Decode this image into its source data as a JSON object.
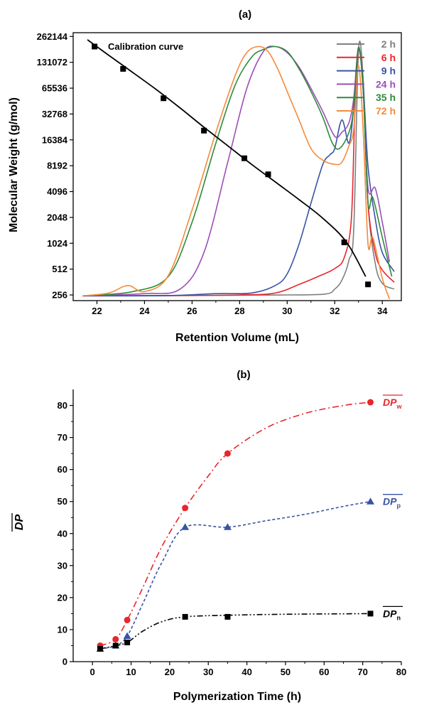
{
  "chart_data": [
    {
      "panel_label": "(a)",
      "type": "line",
      "xlabel": "Retention Volume (mL)",
      "ylabel": "Molecular Weight (g/mol)",
      "xlim": [
        21,
        34.8
      ],
      "ylim": [
        220,
        290000
      ],
      "y_scale": "log2",
      "x_ticks": [
        22,
        24,
        26,
        28,
        30,
        32,
        34
      ],
      "y_ticks": [
        256,
        512,
        1024,
        2048,
        4096,
        8192,
        16384,
        32768,
        65536,
        131072,
        262144
      ],
      "legend_placement": "top-right",
      "grid": false,
      "annotation": "Calibration curve",
      "calibration": {
        "marker": "square",
        "color": "#000000",
        "points": [
          [
            21.9,
            200000
          ],
          [
            23.1,
            110000
          ],
          [
            24.8,
            50000
          ],
          [
            26.5,
            21000
          ],
          [
            28.2,
            10000
          ],
          [
            29.2,
            6500
          ],
          [
            32.4,
            1050
          ],
          [
            33.4,
            340
          ]
        ],
        "fit": [
          [
            21.6,
            240000
          ],
          [
            22.5,
            158000
          ],
          [
            23.5,
            100000
          ],
          [
            24.5,
            63000
          ],
          [
            25.5,
            38500
          ],
          [
            26.5,
            23000
          ],
          [
            27.5,
            14000
          ],
          [
            28.5,
            8500
          ],
          [
            29.5,
            5300
          ],
          [
            30.5,
            3300
          ],
          [
            31.5,
            2000
          ],
          [
            32.5,
            1050
          ],
          [
            33.3,
            420
          ]
        ]
      },
      "series": [
        {
          "name": "2 h",
          "color": "#7f7f7f",
          "x": [
            21.4,
            25,
            28,
            30,
            31.6,
            32.0,
            32.3,
            32.6,
            32.8,
            33.0,
            33.2,
            33.4,
            33.7,
            34.0,
            34.5
          ],
          "y": [
            250,
            252,
            254,
            256,
            262,
            300,
            380,
            650,
            1500,
            180000,
            80000,
            3000,
            600,
            350,
            300
          ]
        },
        {
          "name": "6 h",
          "color": "#e8262c",
          "x": [
            21.4,
            25,
            28,
            29.5,
            30.5,
            31.3,
            32.0,
            32.4,
            32.7,
            32.85,
            33.0,
            33.2,
            33.4,
            33.7,
            34.0,
            34.5
          ],
          "y": [
            250,
            252,
            256,
            270,
            340,
            420,
            520,
            700,
            2000,
            40000,
            190000,
            60000,
            3000,
            800,
            500,
            360
          ]
        },
        {
          "name": "9 h",
          "color": "#3953a4",
          "x": [
            21.4,
            25,
            27,
            28.5,
            29.5,
            30.0,
            30.5,
            31.0,
            31.5,
            31.8,
            32.0,
            32.3,
            32.6,
            32.8,
            33.0,
            33.2,
            33.4,
            33.7,
            34.0,
            34.5
          ],
          "y": [
            250,
            252,
            265,
            270,
            330,
            450,
            1000,
            3000,
            8500,
            11000,
            13000,
            28000,
            15000,
            40000,
            190000,
            70000,
            8000,
            2000,
            800,
            480
          ]
        },
        {
          "name": "24 h",
          "color": "#9b4fb6",
          "x": [
            21.4,
            24,
            25.5,
            26.5,
            27.5,
            28.3,
            29.0,
            29.5,
            30.0,
            30.5,
            31.0,
            31.5,
            32.0,
            32.3,
            32.6,
            32.8,
            33.0,
            33.2,
            33.4,
            33.7,
            34.0,
            34.3
          ],
          "y": [
            250,
            265,
            300,
            800,
            9000,
            65000,
            175000,
            200000,
            170000,
            115000,
            65000,
            35000,
            18000,
            20000,
            26000,
            50000,
            195000,
            60000,
            4500,
            4500,
            1800,
            620
          ]
        },
        {
          "name": "35 h",
          "color": "#2e8a3c",
          "x": [
            21.4,
            23.5,
            25.0,
            26.0,
            27.0,
            27.8,
            28.5,
            29.0,
            29.5,
            30.0,
            30.5,
            31.0,
            31.5,
            31.9,
            32.2,
            32.6,
            32.8,
            33.0,
            33.2,
            33.4,
            33.6,
            34.0,
            34.4
          ],
          "y": [
            250,
            280,
            420,
            1800,
            15000,
            70000,
            150000,
            185000,
            200000,
            175000,
            110000,
            60000,
            30000,
            15000,
            13000,
            20000,
            40000,
            195000,
            60000,
            3000,
            3500,
            1200,
            420
          ]
        },
        {
          "name": "72 h",
          "color": "#f58a3a",
          "x": [
            21.4,
            22.5,
            23.3,
            24.0,
            25.0,
            26.0,
            27.0,
            27.8,
            28.3,
            28.8,
            29.2,
            29.6,
            30.0,
            30.5,
            31.0,
            31.5,
            32.0,
            32.3,
            32.6,
            32.8,
            33.0,
            33.2,
            33.4,
            33.6,
            34.0,
            34.3
          ],
          "y": [
            250,
            270,
            330,
            280,
            430,
            2500,
            20000,
            90000,
            170000,
            200000,
            175000,
            110000,
            60000,
            28000,
            13000,
            9500,
            8500,
            9000,
            14000,
            22000,
            120000,
            20000,
            1000,
            1200,
            400,
            230
          ]
        }
      ]
    },
    {
      "panel_label": "(b)",
      "type": "line",
      "xlabel": "Polymerization Time (h)",
      "ylabel": "DP",
      "xlim": [
        -5,
        80
      ],
      "ylim": [
        0,
        85
      ],
      "x_ticks": [
        0,
        10,
        20,
        30,
        40,
        50,
        60,
        70,
        80
      ],
      "y_ticks": [
        0,
        10,
        20,
        30,
        40,
        50,
        60,
        70,
        80
      ],
      "grid": false,
      "series": [
        {
          "label_main": "DP",
          "label_sub": "w",
          "color": "#e8262c",
          "marker": "circle",
          "line": "dash-dot",
          "x": [
            2,
            6,
            9,
            24,
            35,
            72
          ],
          "y": [
            5,
            7,
            13,
            48,
            65,
            81
          ],
          "curve": [
            [
              2,
              5
            ],
            [
              6,
              7
            ],
            [
              9,
              13
            ],
            [
              13,
              23
            ],
            [
              18,
              36
            ],
            [
              24,
              48
            ],
            [
              30,
              58
            ],
            [
              35,
              65
            ],
            [
              45,
              73
            ],
            [
              55,
              77.5
            ],
            [
              65,
              80
            ],
            [
              72,
              81
            ]
          ]
        },
        {
          "label_main": "DP",
          "label_sub": "p",
          "color": "#3953a4",
          "marker": "triangle",
          "line": "dashed",
          "x": [
            2,
            6,
            9,
            24,
            35,
            72
          ],
          "y": [
            4,
            5,
            8,
            42,
            42,
            50
          ],
          "curve": [
            [
              2,
              4
            ],
            [
              6,
              5
            ],
            [
              9,
              8
            ],
            [
              13,
              18
            ],
            [
              18,
              31
            ],
            [
              24,
              42
            ],
            [
              35,
              42
            ],
            [
              45,
              44
            ],
            [
              55,
              46
            ],
            [
              65,
              48.5
            ],
            [
              72,
              50
            ]
          ]
        },
        {
          "label_main": "DP",
          "label_sub": "n",
          "color": "#000000",
          "marker": "square",
          "line": "dash-dot-dot",
          "x": [
            2,
            6,
            9,
            24,
            35,
            72
          ],
          "y": [
            4,
            5,
            6,
            14,
            14,
            15
          ],
          "curve": [
            [
              2,
              4
            ],
            [
              6,
              5
            ],
            [
              9,
              6
            ],
            [
              13,
              9.5
            ],
            [
              18,
              12.5
            ],
            [
              24,
              14
            ],
            [
              35,
              14.5
            ],
            [
              50,
              14.8
            ],
            [
              72,
              15
            ]
          ]
        }
      ]
    }
  ]
}
